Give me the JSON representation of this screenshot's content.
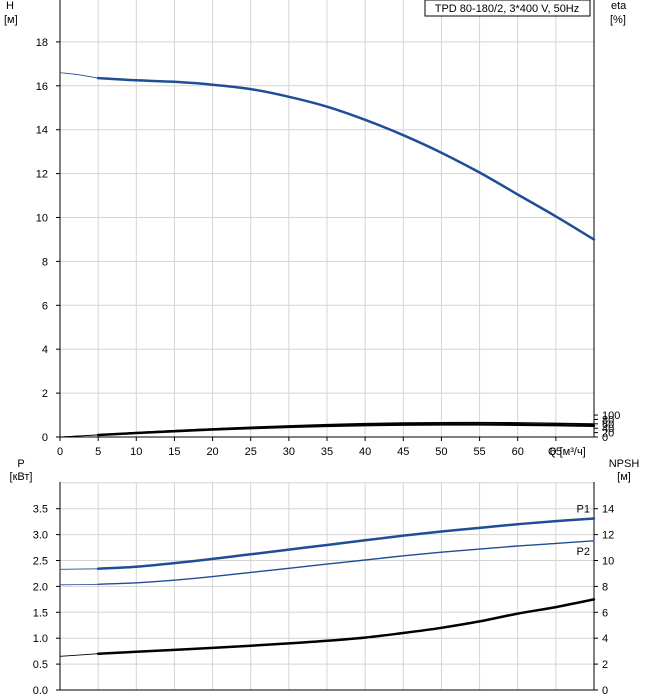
{
  "colors": {
    "blue": "#1f4e96",
    "black": "#000000",
    "grid": "#d4d4d4",
    "curve_extension_blue": "#5a7fb8",
    "curve_extension_black": "#777777"
  },
  "chart_data": [
    {
      "type": "line",
      "panel": "top",
      "title": "TPD 80-180/2, 3*400 V, 50Hz",
      "y_left_label": [
        "H",
        "[м]"
      ],
      "y_right_label": [
        "eta",
        "[%]"
      ],
      "x_label": "Q [м³/ч]",
      "xlim": [
        0,
        70
      ],
      "ylim_left": [
        0,
        20
      ],
      "ylim_right_visible": [
        0,
        100
      ],
      "x_ticks": [
        "0",
        "5",
        "10",
        "15",
        "20",
        "25",
        "30",
        "35",
        "40",
        "45",
        "50",
        "55",
        "60",
        "65"
      ],
      "y_left_ticks": [
        "0",
        "2",
        "4",
        "6",
        "8",
        "10",
        "12",
        "14",
        "16",
        "18"
      ],
      "y_right_ticks": [
        "0",
        "20",
        "40",
        "60",
        "80",
        "100"
      ],
      "grid": true,
      "series": [
        {
          "axis": "left",
          "color": "#1f4e96",
          "style": "thick",
          "extension": {
            "x": [
              0,
              2.5,
              5
            ],
            "y": [
              16.6,
              16.5,
              16.35
            ]
          },
          "x": [
            5,
            10,
            15,
            20,
            25,
            30,
            35,
            40,
            45,
            50,
            55,
            60,
            65,
            70
          ],
          "y": [
            16.35,
            16.25,
            16.18,
            16.05,
            15.85,
            15.5,
            15.05,
            14.45,
            13.75,
            12.95,
            12.05,
            11.05,
            10.05,
            9.0
          ]
        },
        {
          "axis": "right",
          "color": "#000000",
          "style": "thin",
          "extension": {
            "x": [
              0,
              2.5,
              5
            ],
            "y": [
              0,
              5,
              10
            ]
          },
          "x": [
            5,
            10,
            15,
            20,
            25,
            30,
            35,
            40,
            45,
            50,
            55,
            60,
            65,
            70
          ],
          "y": [
            10,
            20,
            29,
            37.5,
            44.8,
            51,
            56.5,
            61,
            63.8,
            65.3,
            65.5,
            64.5,
            62.3,
            59
          ]
        },
        {
          "axis": "right",
          "color": "#000000",
          "style": "thick",
          "extension": {
            "x": [
              0,
              2.5,
              5
            ],
            "y": [
              0,
              4.5,
              9
            ]
          },
          "x": [
            5,
            10,
            15,
            20,
            25,
            30,
            35,
            40,
            45,
            50,
            55,
            60,
            65,
            70
          ],
          "y": [
            9,
            18,
            26.5,
            34,
            40.5,
            46,
            50.5,
            54,
            56.3,
            57.3,
            57.2,
            56,
            54,
            51.3
          ]
        }
      ]
    },
    {
      "type": "line",
      "panel": "bottom",
      "y_left_label": [
        "P",
        "[кВт]"
      ],
      "y_right_label": [
        "NPSH",
        "[м]"
      ],
      "xlim": [
        0,
        70
      ],
      "ylim_left": [
        0,
        4.0
      ],
      "ylim_right": [
        0,
        16
      ],
      "y_left_ticks": [
        "0.0",
        "0.5",
        "1.0",
        "1.5",
        "2.0",
        "2.5",
        "3.0",
        "3.5"
      ],
      "y_right_ticks": [
        "0",
        "2",
        "4",
        "6",
        "8",
        "10",
        "12",
        "14"
      ],
      "grid": true,
      "series": [
        {
          "name": "P1",
          "axis": "left",
          "color": "#1f4e96",
          "style": "thick",
          "extension": {
            "x": [
              0,
              5
            ],
            "y": [
              2.33,
              2.34
            ]
          },
          "x": [
            5,
            10,
            15,
            20,
            25,
            30,
            35,
            40,
            45,
            50,
            55,
            60,
            65,
            70
          ],
          "y": [
            2.34,
            2.38,
            2.45,
            2.53,
            2.62,
            2.71,
            2.8,
            2.89,
            2.98,
            3.06,
            3.13,
            3.2,
            3.26,
            3.31
          ]
        },
        {
          "name": "P2",
          "axis": "left",
          "color": "#1f4e96",
          "style": "thin",
          "extension": {
            "x": [
              0,
              5
            ],
            "y": [
              2.03,
              2.04
            ]
          },
          "x": [
            5,
            10,
            15,
            20,
            25,
            30,
            35,
            40,
            45,
            50,
            55,
            60,
            65,
            70
          ],
          "y": [
            2.04,
            2.07,
            2.12,
            2.19,
            2.27,
            2.35,
            2.43,
            2.51,
            2.59,
            2.66,
            2.72,
            2.78,
            2.83,
            2.88
          ]
        },
        {
          "axis": "right",
          "color": "#000000",
          "style": "thick",
          "extension": {
            "x": [
              0,
              5
            ],
            "y": [
              2.6,
              2.8
            ]
          },
          "x": [
            5,
            10,
            15,
            20,
            25,
            30,
            35,
            40,
            45,
            50,
            55,
            60,
            65,
            70
          ],
          "y": [
            2.8,
            2.95,
            3.1,
            3.25,
            3.42,
            3.6,
            3.8,
            4.05,
            4.4,
            4.8,
            5.3,
            5.9,
            6.4,
            7.0
          ]
        }
      ]
    }
  ]
}
